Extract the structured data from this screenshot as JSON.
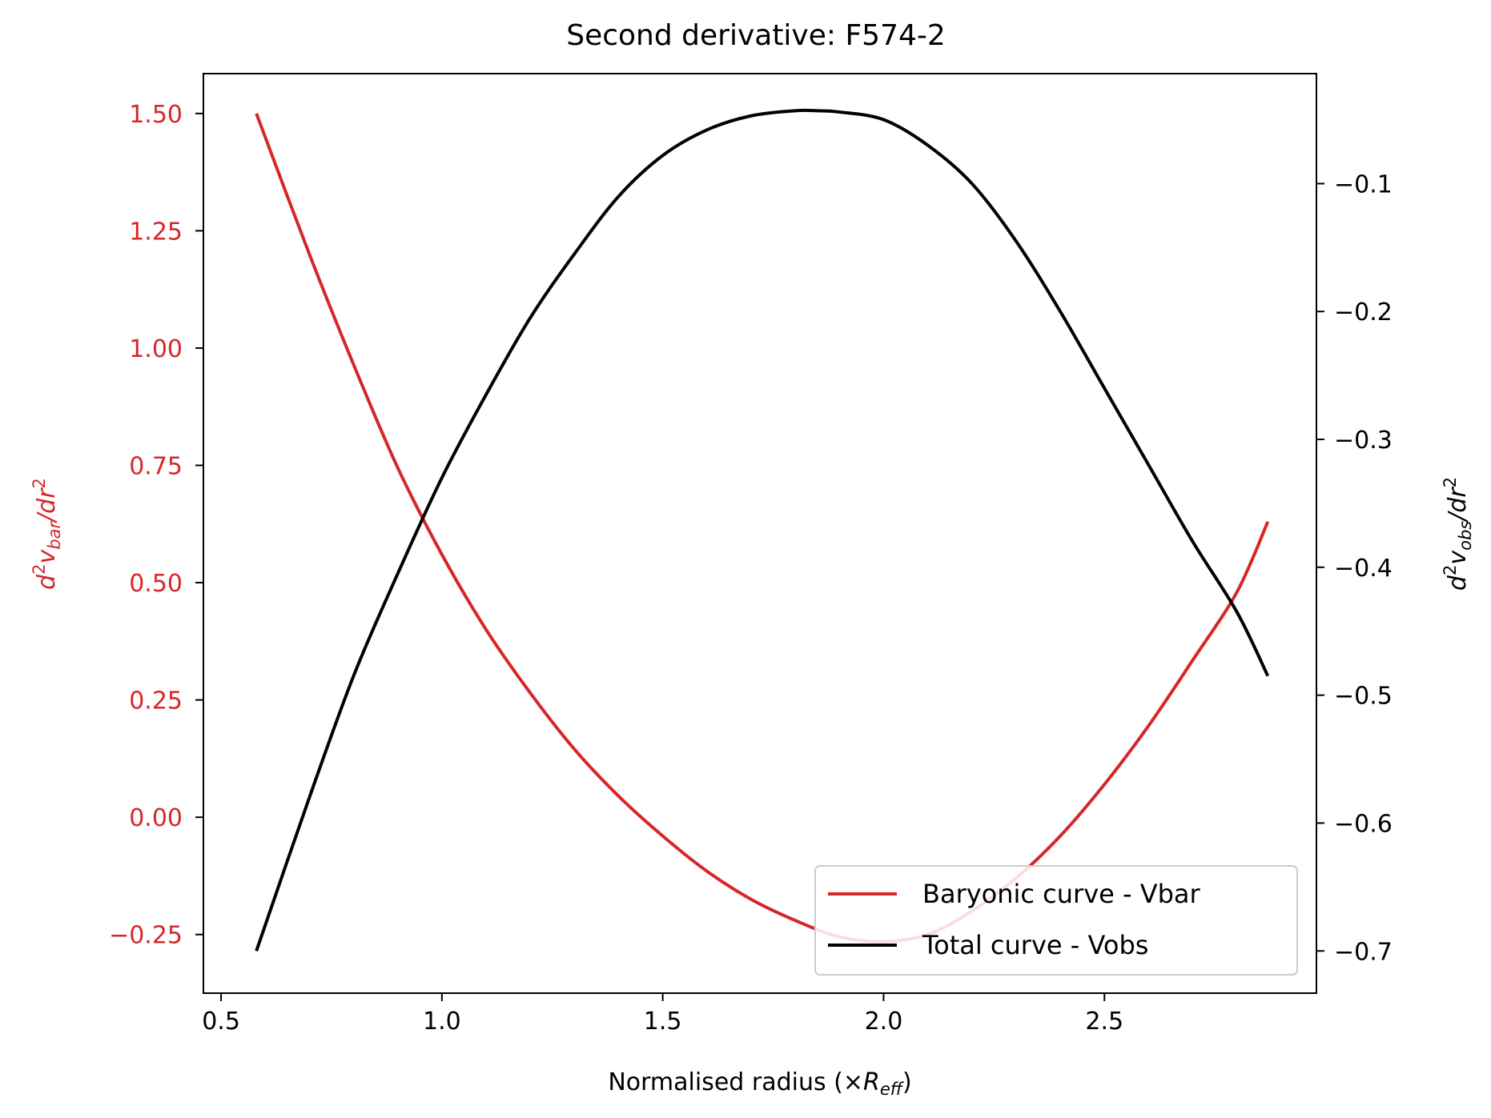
{
  "chart_data": {
    "type": "line",
    "title": "Second derivative: F574-2",
    "xlabel_pre": "Normalised radius (×",
    "xlabel_var": "R",
    "xlabel_sub": "eff",
    "xlabel_post": ")",
    "ylabel_left": "d²v_bar/dr²",
    "ylabel_right": "d²v_obs/dr²",
    "x_ticks": [
      0.5,
      1.0,
      1.5,
      2.0,
      2.5
    ],
    "x_tick_labels": [
      "0.5",
      "1.0",
      "1.5",
      "2.0",
      "2.5"
    ],
    "xlim": [
      0.46,
      2.98
    ],
    "y_left_ticks": [
      -0.25,
      0.0,
      0.25,
      0.5,
      0.75,
      1.0,
      1.25,
      1.5
    ],
    "y_left_tick_labels": [
      "−0.25",
      "0.00",
      "0.25",
      "0.50",
      "0.75",
      "1.00",
      "1.25",
      "1.50"
    ],
    "ylim_left": [
      -0.375,
      1.585
    ],
    "y_right_ticks": [
      -0.7,
      -0.6,
      -0.5,
      -0.4,
      -0.3,
      -0.2,
      -0.1
    ],
    "y_right_tick_labels": [
      "−0.7",
      "−0.6",
      "−0.5",
      "−0.4",
      "−0.3",
      "−0.2",
      "−0.1"
    ],
    "ylim_right": [
      -0.733,
      -0.014
    ],
    "colors": {
      "baryonic": "#d62728",
      "total": "#000000"
    },
    "legend_location": "lower right",
    "series": [
      {
        "name": "Baryonic curve - Vbar",
        "axis": "left",
        "x": [
          0.58,
          0.7,
          0.8,
          0.9,
          1.0,
          1.1,
          1.2,
          1.3,
          1.4,
          1.5,
          1.6,
          1.7,
          1.8,
          1.9,
          2.0,
          2.1,
          2.2,
          2.3,
          2.4,
          2.5,
          2.6,
          2.7,
          2.8,
          2.87
        ],
        "y": [
          1.5,
          1.2,
          0.965,
          0.745,
          0.56,
          0.4,
          0.265,
          0.145,
          0.045,
          -0.04,
          -0.115,
          -0.175,
          -0.22,
          -0.255,
          -0.265,
          -0.25,
          -0.2,
          -0.13,
          -0.04,
          0.07,
          0.195,
          0.335,
          0.48,
          0.63
        ]
      },
      {
        "name": "Total curve - Vobs",
        "axis": "right",
        "x": [
          0.58,
          0.7,
          0.8,
          0.9,
          1.0,
          1.1,
          1.2,
          1.3,
          1.4,
          1.5,
          1.6,
          1.7,
          1.8,
          1.85,
          1.9,
          2.0,
          2.1,
          2.2,
          2.3,
          2.4,
          2.5,
          2.6,
          2.7,
          2.8,
          2.87
        ],
        "y": [
          -0.7,
          -0.58,
          -0.485,
          -0.405,
          -0.33,
          -0.265,
          -0.205,
          -0.155,
          -0.11,
          -0.078,
          -0.058,
          -0.047,
          -0.043,
          -0.043,
          -0.044,
          -0.05,
          -0.07,
          -0.1,
          -0.145,
          -0.2,
          -0.26,
          -0.32,
          -0.38,
          -0.435,
          -0.485
        ]
      }
    ]
  }
}
